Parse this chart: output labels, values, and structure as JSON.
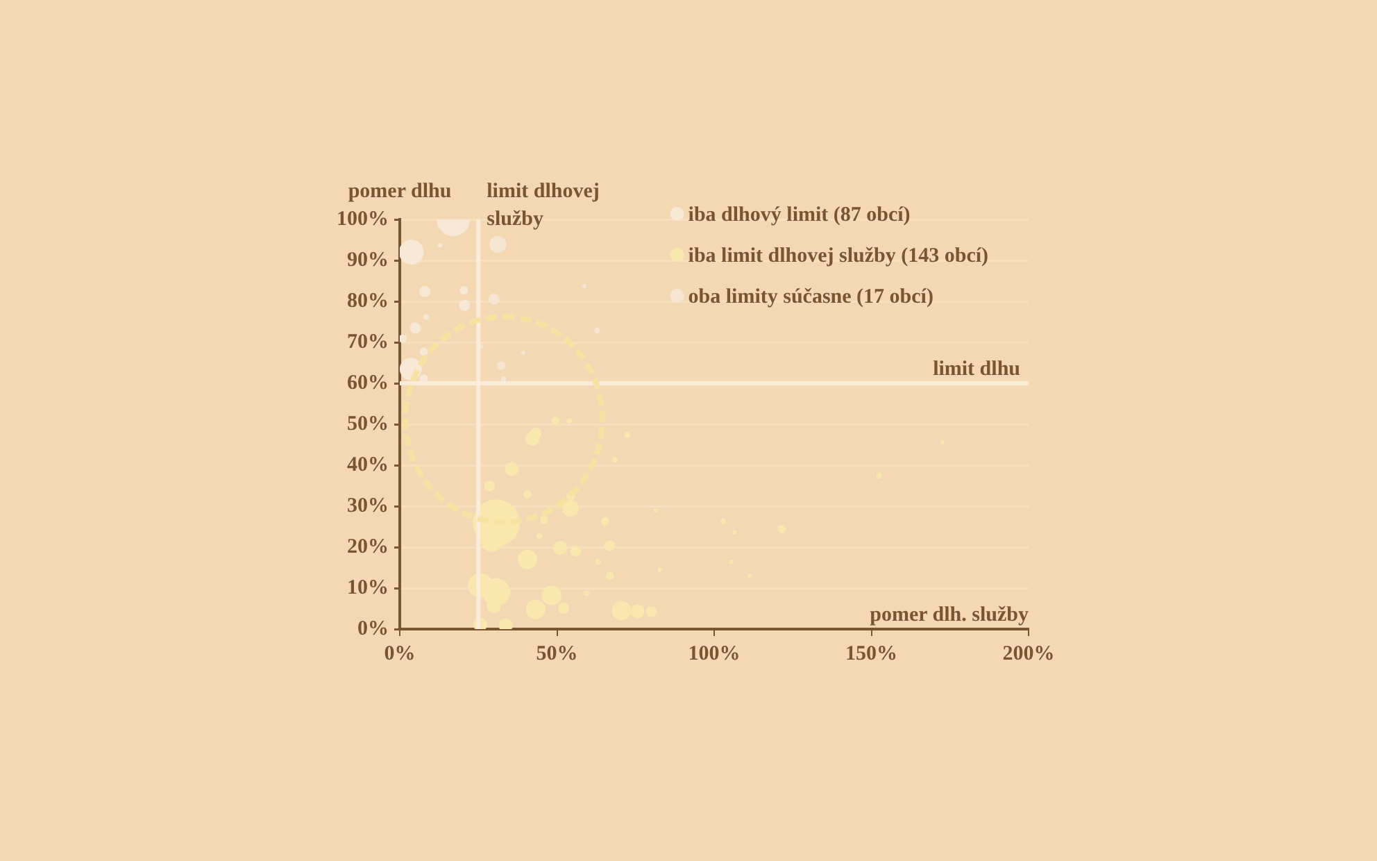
{
  "chart_data": {
    "type": "bubble",
    "ylabel": "pomer dlhu",
    "xlabel": "pomer dlh. služby",
    "xlim": [
      0,
      200
    ],
    "xticks": [
      {
        "value": 0,
        "label": "0%"
      },
      {
        "value": 50,
        "label": "50%"
      },
      {
        "value": 100,
        "label": "100%"
      },
      {
        "value": 150,
        "label": "150%"
      },
      {
        "value": 200,
        "label": "200%"
      }
    ],
    "ylim": [
      0,
      100
    ],
    "yticks": [
      {
        "value": 0,
        "label": "0%"
      },
      {
        "value": 10,
        "label": "10%"
      },
      {
        "value": 20,
        "label": "20%"
      },
      {
        "value": 30,
        "label": "30%"
      },
      {
        "value": 40,
        "label": "40%"
      },
      {
        "value": 50,
        "label": "50%"
      },
      {
        "value": 60,
        "label": "60%"
      },
      {
        "value": 70,
        "label": "70%"
      },
      {
        "value": 80,
        "label": "80%"
      },
      {
        "value": 90,
        "label": "90%"
      },
      {
        "value": 100,
        "label": "100%"
      }
    ],
    "grid": "y",
    "legend": "top right",
    "ref_lines": [
      {
        "axis": "y",
        "value": 60,
        "label": "limit dlhu",
        "color": "#fbecd9"
      },
      {
        "axis": "x",
        "value": 25,
        "label": "limit dlhovej služby",
        "color": "#fbecd9"
      }
    ],
    "series": [
      {
        "name": "iba dlhový limit (87 obcí)",
        "color": "#f8e8d6",
        "x": [
          17,
          3.7,
          12.8,
          8,
          20.4,
          20.6,
          8.4,
          5,
          0.9,
          3.5,
          7.6,
          7.6
        ],
        "values": [
          100,
          92,
          93.7,
          82.4,
          82.7,
          79,
          76.2,
          73.5,
          70.9,
          63.5,
          67.7,
          61.2
        ],
        "sizes": [
          0.5,
          0.28,
          0.008,
          0.055,
          0.031,
          0.055,
          0.014,
          0.055,
          0.031,
          0.22,
          0.031,
          0.031
        ]
      },
      {
        "name": "iba limit dlhovej služby (143 obcí)",
        "color": "#f9e7ad",
        "x": [
          30.7,
          25.6,
          30.7,
          29.3,
          40.6,
          35.6,
          28.5,
          42.2,
          43.3,
          49.6,
          54,
          54.3,
          51,
          56,
          48.3,
          43.2,
          52.1,
          40.6,
          45.9,
          44.4,
          59.4,
          66.8,
          65.3,
          66.8,
          63,
          70.5,
          75.6,
          25.6,
          33.7,
          29.9,
          72.4,
          54.3,
          68.3,
          80,
          81.5,
          82.7,
          102.9,
          106.5,
          105.5,
          111.4,
          121.5,
          152.4,
          172.5
        ],
        "values": [
          25.9,
          10.7,
          9,
          21.6,
          17,
          39.1,
          34.9,
          46.5,
          47.8,
          50.8,
          50.8,
          29.5,
          19.8,
          19,
          8.2,
          4.8,
          5.1,
          32.9,
          26.6,
          22.7,
          8.8,
          20.4,
          26.3,
          13,
          16.4,
          4.5,
          4.3,
          1.1,
          0.9,
          5.6,
          47.4,
          32.4,
          41.3,
          4.3,
          28.9,
          14.5,
          26.3,
          23.6,
          16.4,
          13,
          24.4,
          37.4,
          45.6
        ],
        "sizes": [
          1,
          0.28,
          0.35,
          0.22,
          0.17,
          0.087,
          0.055,
          0.087,
          0.055,
          0.031,
          0.014,
          0.125,
          0.087,
          0.055,
          0.17,
          0.17,
          0.055,
          0.031,
          0.031,
          0.014,
          0.014,
          0.055,
          0.031,
          0.031,
          0.014,
          0.17,
          0.087,
          0.087,
          0.087,
          0.087,
          0.014,
          0.031,
          0.014,
          0.055,
          0.008,
          0.008,
          0.014,
          0.008,
          0.008,
          0.008,
          0.031,
          0.014,
          0.008
        ]
      },
      {
        "name": "oba limity súčasne (17 obcí)",
        "color": "#f6e6d1",
        "x": [
          31.2,
          30,
          58.7,
          62.8,
          39.3,
          32.2,
          33,
          25.9
        ],
        "values": [
          93.9,
          80.5,
          83.7,
          72.9,
          67.4,
          64.3,
          61,
          68.9
        ],
        "sizes": [
          0.125,
          0.055,
          0.008,
          0.014,
          0.008,
          0.031,
          0.014,
          0.008
        ]
      }
    ]
  }
}
